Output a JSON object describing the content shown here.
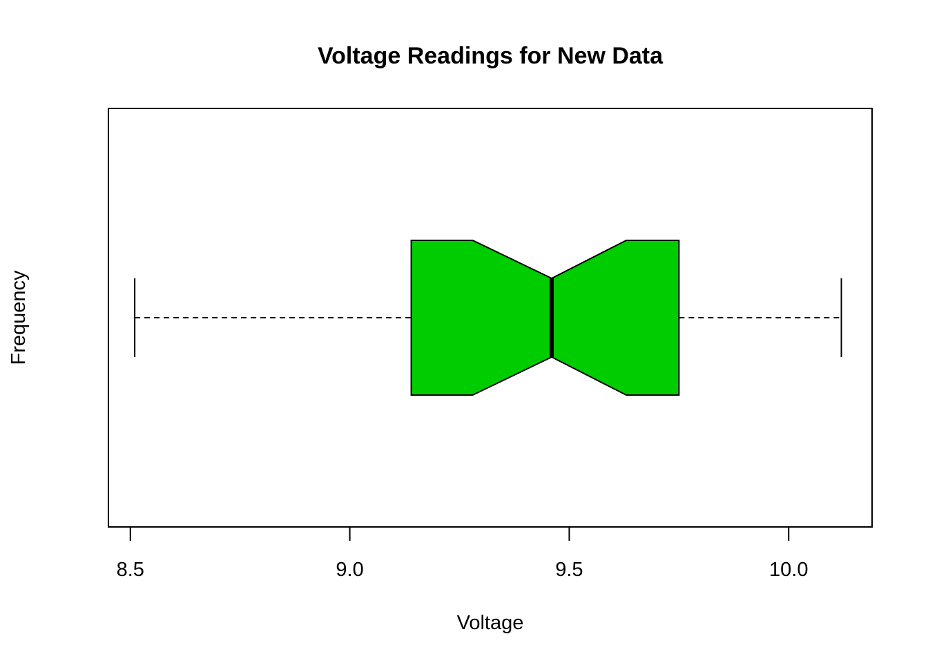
{
  "chart_data": {
    "type": "boxplot",
    "orientation": "horizontal",
    "notched": true,
    "title": "Voltage Readings for New Data",
    "xlabel": "Voltage",
    "ylabel": "Frequency",
    "xlim": [
      8.45,
      10.19
    ],
    "xticks": [
      8.5,
      9.0,
      9.5,
      10.0
    ],
    "xtick_labels": [
      "8.5",
      "9.0",
      "9.5",
      "10.0"
    ],
    "box": {
      "whisker_low": 8.51,
      "q1": 9.14,
      "median": 9.46,
      "q3": 9.75,
      "whisker_high": 10.12,
      "notch_low": 9.28,
      "notch_high": 9.63
    },
    "fill_color": "#00CD00",
    "grid": false
  }
}
